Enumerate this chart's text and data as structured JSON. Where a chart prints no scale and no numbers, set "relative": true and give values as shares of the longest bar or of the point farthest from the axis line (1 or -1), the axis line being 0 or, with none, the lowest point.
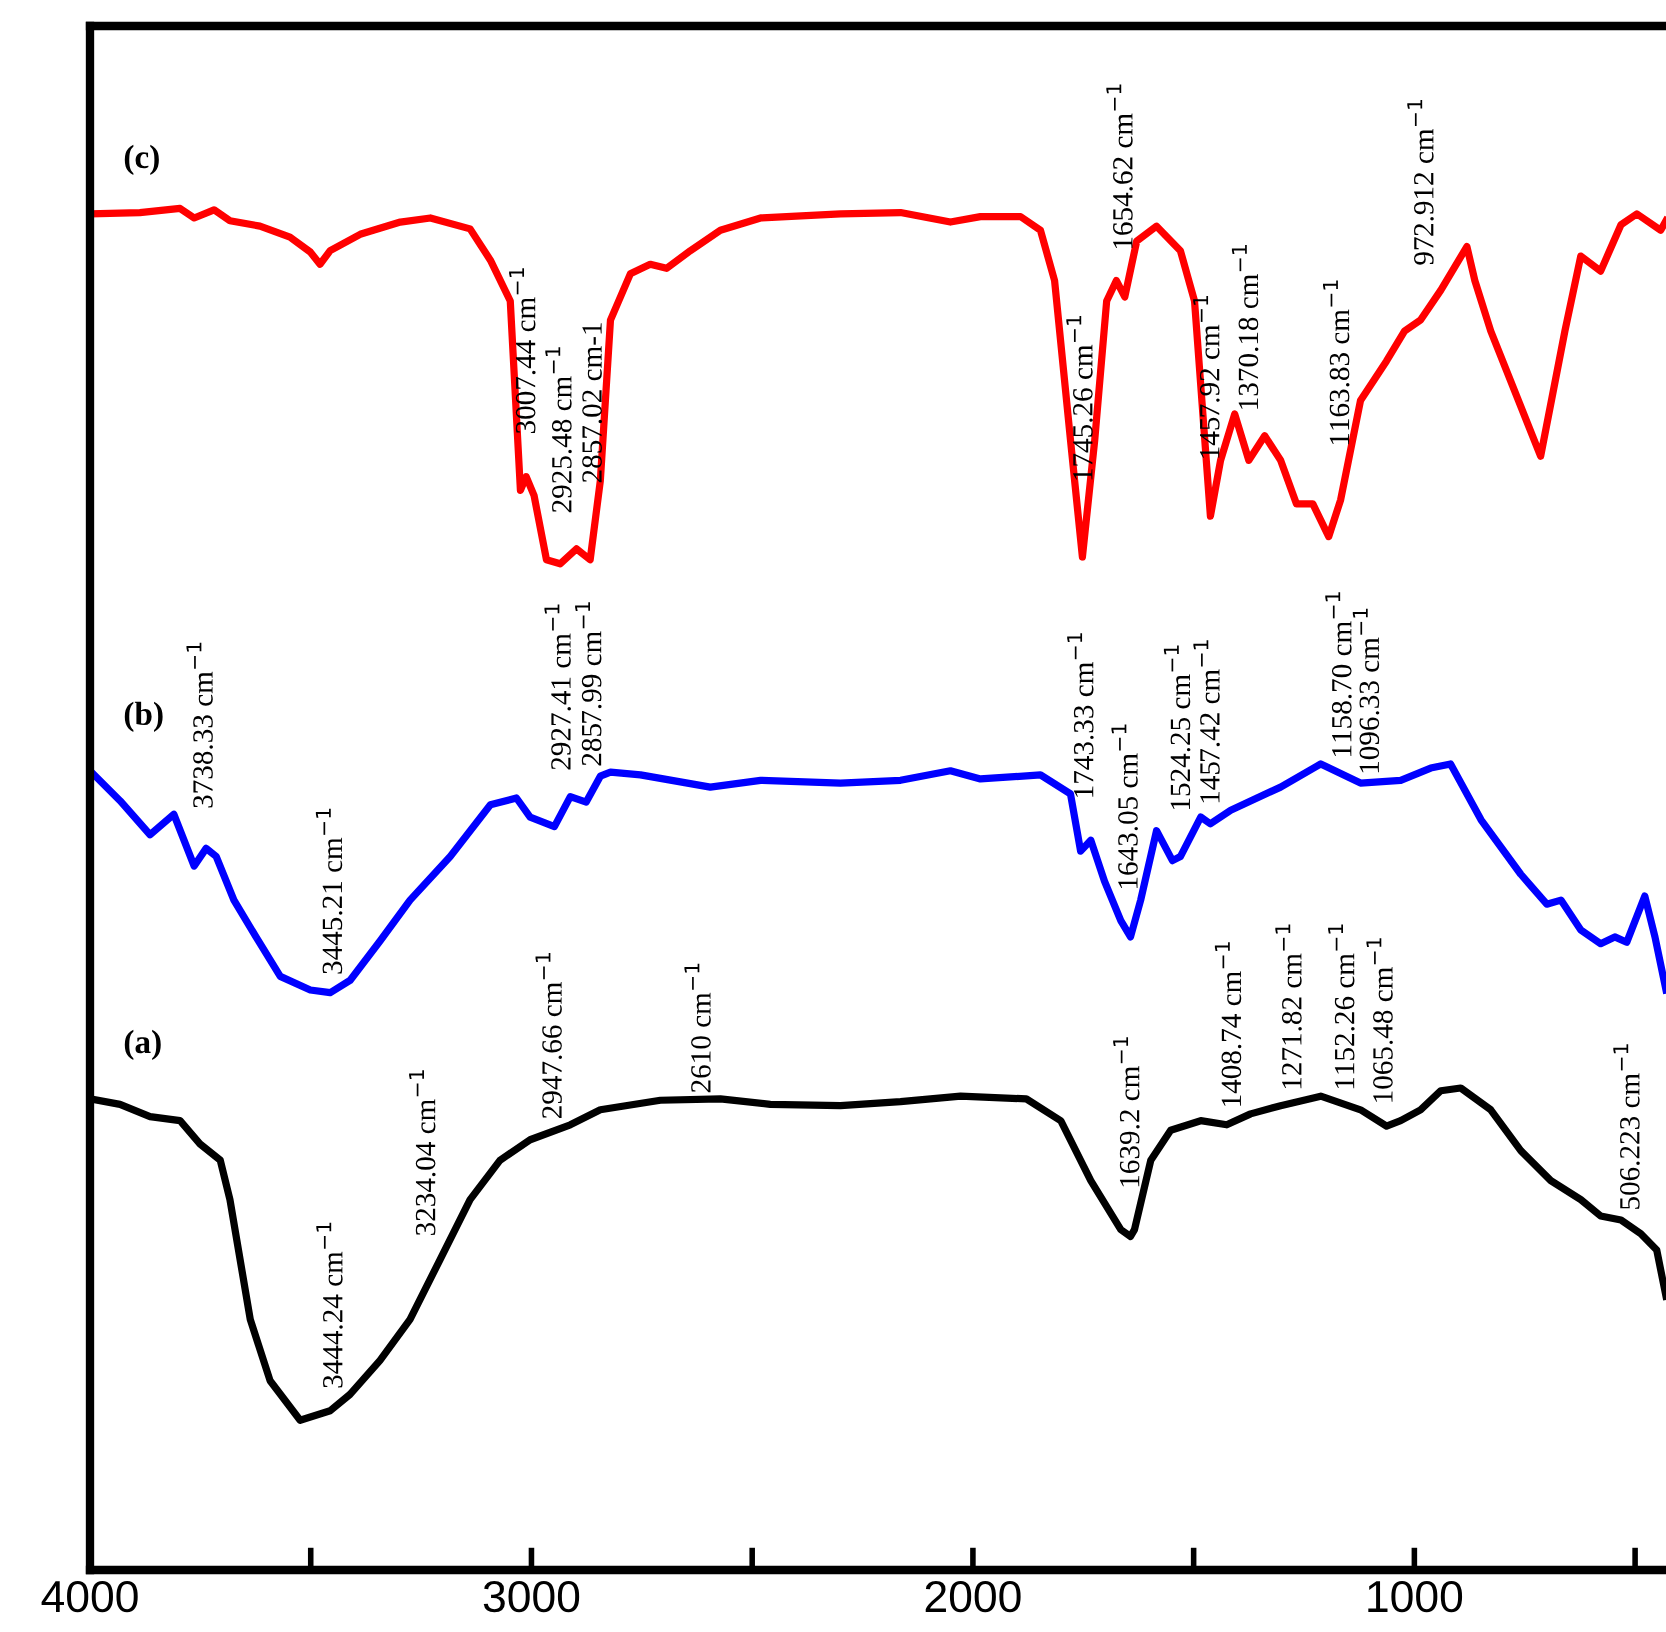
{
  "chart_data": {
    "type": "line",
    "relative": true,
    "tick_labels": "x",
    "grid": false,
    "legend": false,
    "marker": "none",
    "line_style": "solid",
    "xlim": [
      4000,
      430
    ],
    "xticks": [
      4000,
      {
        "value": 3500,
        "label": null
      },
      3000,
      {
        "value": 2500,
        "label": null
      },
      2000,
      {
        "value": 1500,
        "label": null
      },
      1000,
      {
        "value": 500,
        "label": null
      }
    ],
    "series": [
      {
        "name": "(a)",
        "color": "#000000",
        "x": [
          4000,
          3932,
          3864,
          3796,
          3751,
          3705,
          3683,
          3637,
          3592,
          3524,
          3456,
          3411,
          3343,
          3275,
          3207,
          3139,
          3071,
          3003,
          2912,
          2844,
          2708,
          2572,
          2459,
          2300,
          2164,
          2028,
          1879,
          1801,
          1733,
          1665,
          1643,
          1634,
          1597,
          1552,
          1484,
          1425,
          1371,
          1303,
          1212,
          1122,
          1063,
          1031,
          986,
          940,
          895,
          827,
          759,
          691,
          623,
          578,
          532,
          487,
          451,
          430
        ],
        "values": [
          0.346,
          0.342,
          0.333,
          0.33,
          0.313,
          0.301,
          0.272,
          0.184,
          0.139,
          0.11,
          0.117,
          0.129,
          0.154,
          0.184,
          0.228,
          0.272,
          0.301,
          0.316,
          0.327,
          0.338,
          0.345,
          0.346,
          0.342,
          0.341,
          0.344,
          0.348,
          0.346,
          0.33,
          0.286,
          0.25,
          0.245,
          0.25,
          0.301,
          0.323,
          0.33,
          0.327,
          0.335,
          0.341,
          0.348,
          0.338,
          0.326,
          0.33,
          0.338,
          0.352,
          0.354,
          0.338,
          0.308,
          0.286,
          0.272,
          0.26,
          0.257,
          0.247,
          0.235,
          0.201
        ]
      },
      {
        "name": "(b)",
        "color": "#0000ff",
        "x": [
          4000,
          3932,
          3864,
          3810,
          3764,
          3737,
          3714,
          3674,
          3624,
          3569,
          3501,
          3456,
          3411,
          3343,
          3275,
          3184,
          3093,
          3034,
          3003,
          2948,
          2912,
          2876,
          2844,
          2821,
          2753,
          2595,
          2481,
          2300,
          2164,
          2051,
          1983,
          1847,
          1779,
          1756,
          1733,
          1702,
          1665,
          1643,
          1620,
          1584,
          1548,
          1530,
          1484,
          1462,
          1416,
          1303,
          1212,
          1122,
          1031,
          963,
          918,
          849,
          759,
          700,
          668,
          623,
          578,
          546,
          519,
          478,
          455,
          430
        ],
        "values": [
          0.587,
          0.565,
          0.54,
          0.555,
          0.517,
          0.53,
          0.524,
          0.492,
          0.465,
          0.436,
          0.426,
          0.424,
          0.433,
          0.462,
          0.492,
          0.524,
          0.562,
          0.567,
          0.553,
          0.546,
          0.568,
          0.564,
          0.583,
          0.586,
          0.584,
          0.575,
          0.58,
          0.578,
          0.58,
          0.587,
          0.581,
          0.584,
          0.57,
          0.528,
          0.536,
          0.506,
          0.477,
          0.465,
          0.492,
          0.543,
          0.521,
          0.524,
          0.553,
          0.548,
          0.558,
          0.575,
          0.592,
          0.578,
          0.58,
          0.589,
          0.592,
          0.551,
          0.511,
          0.489,
          0.492,
          0.47,
          0.46,
          0.465,
          0.461,
          0.495,
          0.465,
          0.426
        ]
      },
      {
        "name": "(c)",
        "color": "#ff0000",
        "x": [
          4000,
          3887,
          3796,
          3764,
          3719,
          3683,
          3615,
          3547,
          3501,
          3479,
          3456,
          3388,
          3297,
          3229,
          3139,
          3093,
          3048,
          3025,
          3012,
          2994,
          2966,
          2935,
          2898,
          2867,
          2844,
          2821,
          2776,
          2731,
          2694,
          2640,
          2572,
          2481,
          2300,
          2164,
          2051,
          1983,
          1892,
          1847,
          1815,
          1779,
          1752,
          1724,
          1697,
          1675,
          1656,
          1629,
          1584,
          1530,
          1498,
          1462,
          1439,
          1407,
          1375,
          1339,
          1303,
          1267,
          1230,
          1194,
          1167,
          1122,
          1063,
          1022,
          986,
          940,
          881,
          863,
          827,
          714,
          659,
          623,
          578,
          532,
          496,
          442,
          430
        ],
        "values": [
          0.996,
          0.997,
          1.0,
          0.993,
          0.999,
          0.991,
          0.987,
          0.979,
          0.968,
          0.959,
          0.969,
          0.981,
          0.99,
          0.993,
          0.985,
          0.962,
          0.932,
          0.793,
          0.803,
          0.789,
          0.742,
          0.739,
          0.75,
          0.742,
          0.8,
          0.918,
          0.952,
          0.959,
          0.956,
          0.969,
          0.984,
          0.993,
          0.996,
          0.997,
          0.99,
          0.994,
          0.994,
          0.984,
          0.947,
          0.83,
          0.744,
          0.83,
          0.932,
          0.947,
          0.935,
          0.976,
          0.987,
          0.969,
          0.932,
          0.774,
          0.815,
          0.849,
          0.815,
          0.833,
          0.815,
          0.783,
          0.783,
          0.759,
          0.786,
          0.859,
          0.888,
          0.91,
          0.918,
          0.94,
          0.972,
          0.947,
          0.91,
          0.818,
          0.91,
          0.965,
          0.954,
          0.988,
          0.996,
          0.984,
          0.991
        ]
      }
    ],
    "annotations": [
      {
        "text": "3007.44 cm$^{−1}$",
        "x": 3007.44,
        "y": 0.8
      },
      {
        "text": "2925.48 cm$^{−1}$",
        "x": 2925.48,
        "y": 0.742
      },
      {
        "text": "2857.02 cm-1",
        "x": 2857.02,
        "y": 0.764
      },
      {
        "text": "1745.26 cm$^{−1}$",
        "x": 1745.26,
        "y": 0.765
      },
      {
        "text": "1654.62 cm$^{−1}$",
        "x": 1654.62,
        "y": 0.935
      },
      {
        "text": "1457.92 cm$^{−1}$",
        "x": 1457.92,
        "y": 0.781
      },
      {
        "text": "1370.18 cm$^{−1}$",
        "x": 1370.18,
        "y": 0.817
      },
      {
        "text": "1163.83 cm$^{−1}$",
        "x": 1163.83,
        "y": 0.791
      },
      {
        "text": "972.912 cm$^{−1}$",
        "x": 972.912,
        "y": 0.924
      },
      {
        "text": "3738.33 cm$^{−1}$",
        "x": 3738.33,
        "y": 0.53
      },
      {
        "text": "3445.21 cm$^{−1}$",
        "x": 3445.21,
        "y": 0.426
      },
      {
        "text": "2927.41 cm$^{−1}$",
        "x": 2927.41,
        "y": 0.559
      },
      {
        "text": "2857.99 cm$^{−1}$",
        "x": 2857.99,
        "y": 0.575
      },
      {
        "text": "1743.33 cm$^{−1}$",
        "x": 1743.33,
        "y": 0.532
      },
      {
        "text": "1643.05 cm$^{−1}$",
        "x": 1643.05,
        "y": 0.465
      },
      {
        "text": "1524.25 cm$^{−1}$",
        "x": 1524.25,
        "y": 0.528
      },
      {
        "text": "1457.42 cm$^{−1}$",
        "x": 1457.42,
        "y": 0.549
      },
      {
        "text": "1158.70 cm$^{−1}$",
        "x": 1158.7,
        "y": 0.584
      },
      {
        "text": "1096.33 cm$^{−1}$",
        "x": 1096.33,
        "y": 0.579
      },
      {
        "text": "3444.24 cm$^{−1}$",
        "x": 3444.24,
        "y": 0.12
      },
      {
        "text": "3234.04 cm$^{−1}$",
        "x": 3234.04,
        "y": 0.211
      },
      {
        "text": "2947.66 cm$^{−1}$",
        "x": 2947.66,
        "y": 0.323
      },
      {
        "text": "2610 cm$^{−1}$",
        "x": 2610,
        "y": 0.346
      },
      {
        "text": "1639.2 cm$^{−1}$",
        "x": 1639.2,
        "y": 0.246
      },
      {
        "text": "1408.74 cm$^{−1}$",
        "x": 1408.74,
        "y": 0.329
      },
      {
        "text": "1271.82 cm$^{−1}$",
        "x": 1271.82,
        "y": 0.343
      },
      {
        "text": "1152.26 cm$^{−1}$",
        "x": 1152.26,
        "y": 0.341
      },
      {
        "text": "1065.48 cm$^{−1}$",
        "x": 1065.48,
        "y": 0.326
      },
      {
        "text": "506.223 cm$^{−1}$",
        "x": 506.223,
        "y": 0.251
      }
    ]
  }
}
